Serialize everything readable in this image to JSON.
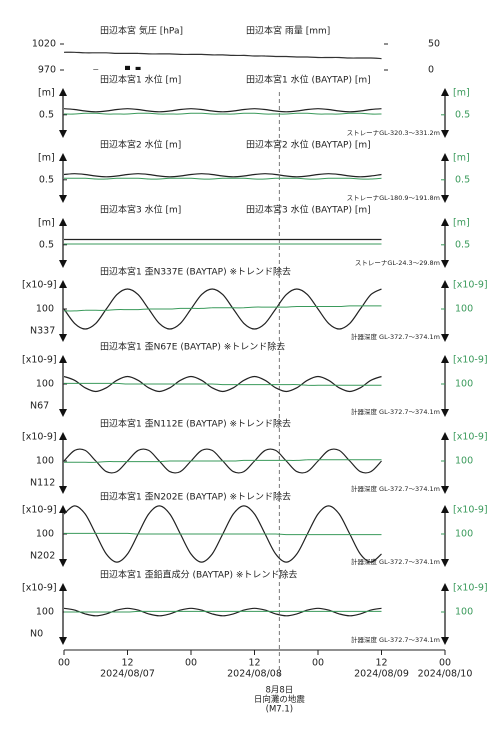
{
  "chart_data": {
    "type": "line",
    "x": [
      0,
      2,
      4,
      6,
      8,
      10,
      12,
      14,
      16,
      18,
      20,
      22,
      24,
      26,
      28,
      30,
      32,
      34,
      36,
      38,
      40,
      42,
      44,
      46,
      48,
      50,
      52,
      54,
      56,
      58,
      60
    ],
    "xlim": [
      0,
      72
    ],
    "xticks": [
      {
        "value": 0,
        "label": "00"
      },
      {
        "value": 12,
        "label": "12"
      },
      {
        "value": 24,
        "label": "00"
      },
      {
        "value": 36,
        "label": "12"
      },
      {
        "value": 48,
        "label": "00"
      },
      {
        "value": 60,
        "label": "12"
      },
      {
        "value": 72,
        "label": "00"
      }
    ],
    "date_labels": [
      {
        "value": 12,
        "label": "2024/08/07"
      },
      {
        "value": 36,
        "label": "2024/08/08"
      },
      {
        "value": 60,
        "label": "2024/08/09"
      },
      {
        "value": 72,
        "label": "2024/08/10"
      }
    ],
    "event": {
      "x": 40.7,
      "labels": [
        "8月8日",
        "日向灘の地震",
        "(M7.1)"
      ]
    },
    "panels": [
      {
        "titles": [
          "田辺本宮 気圧 [hPa]",
          "田辺本宮 雨量 [mm]"
        ],
        "ylim": [
          970,
          1020
        ],
        "yticks": [
          970,
          1020
        ],
        "y2lim": [
          0,
          50
        ],
        "y2ticks": [
          0,
          50
        ],
        "series": [
          {
            "color": "#333333",
            "values": [
              1004,
              1004,
              1003,
              1003,
              1003,
              1002,
              1002,
              1002,
              1001,
              1001,
              1001,
              1000,
              1000,
              1000,
              999,
              999,
              998,
              998,
              997,
              997,
              996,
              996,
              995,
              995,
              994,
              994,
              994,
              993,
              993,
              993,
              992
            ]
          },
          {
            "type": "bar",
            "axis": "y2",
            "color": "#111111",
            "values": [
              0,
              0,
              0,
              1,
              0,
              0,
              8,
              6,
              0,
              0,
              0,
              0,
              0,
              0,
              0,
              0,
              0,
              0,
              0,
              0,
              0,
              0,
              0,
              0,
              0,
              0,
              0,
              0,
              0,
              0,
              0
            ]
          }
        ]
      },
      {
        "titles": [
          "田辺本宮1 水位 [m]",
          "田辺本宮1 水位 (BAYTAP) [m]"
        ],
        "unit": "[m]",
        "y2unit": "[m]",
        "ylim": [
          0.3,
          0.8
        ],
        "yticks": [
          0.5
        ],
        "y2lim": [
          0.3,
          0.8
        ],
        "y2ticks": [
          0.5
        ],
        "note": "ストレーナGL-320.3～331.2m",
        "series": [
          {
            "color": "#222222",
            "values": [
              0.58,
              0.57,
              0.55,
              0.54,
              0.55,
              0.57,
              0.58,
              0.57,
              0.55,
              0.54,
              0.55,
              0.57,
              0.58,
              0.57,
              0.55,
              0.54,
              0.55,
              0.57,
              0.58,
              0.57,
              0.55,
              0.54,
              0.55,
              0.57,
              0.58,
              0.57,
              0.55,
              0.54,
              0.55,
              0.57,
              0.58
            ]
          },
          {
            "axis": "y2",
            "color": "#3a9a5b",
            "values": [
              0.51,
              0.51,
              0.52,
              0.52,
              0.51,
              0.51,
              0.51,
              0.52,
              0.52,
              0.51,
              0.51,
              0.51,
              0.52,
              0.52,
              0.51,
              0.51,
              0.51,
              0.52,
              0.52,
              0.51,
              0.51,
              0.51,
              0.52,
              0.52,
              0.51,
              0.51,
              0.51,
              0.52,
              0.52,
              0.51,
              0.51
            ]
          }
        ]
      },
      {
        "titles": [
          "田辺本宮2 水位 [m]",
          "田辺本宮2 水位 (BAYTAP) [m]"
        ],
        "unit": "[m]",
        "y2unit": "[m]",
        "ylim": [
          0.3,
          0.8
        ],
        "yticks": [
          0.5
        ],
        "y2lim": [
          0.3,
          0.8
        ],
        "y2ticks": [
          0.5
        ],
        "note": "ストレーナGL-180.9～191.8m",
        "series": [
          {
            "color": "#222222",
            "values": [
              0.57,
              0.58,
              0.57,
              0.55,
              0.54,
              0.55,
              0.57,
              0.58,
              0.57,
              0.55,
              0.54,
              0.55,
              0.57,
              0.58,
              0.57,
              0.55,
              0.54,
              0.55,
              0.57,
              0.58,
              0.57,
              0.55,
              0.54,
              0.55,
              0.57,
              0.58,
              0.57,
              0.55,
              0.54,
              0.55,
              0.57
            ]
          },
          {
            "axis": "y2",
            "color": "#3a9a5b",
            "values": [
              0.52,
              0.52,
              0.52,
              0.51,
              0.51,
              0.52,
              0.52,
              0.52,
              0.51,
              0.51,
              0.52,
              0.52,
              0.52,
              0.51,
              0.51,
              0.52,
              0.52,
              0.52,
              0.51,
              0.51,
              0.52,
              0.52,
              0.52,
              0.51,
              0.51,
              0.52,
              0.52,
              0.52,
              0.51,
              0.51,
              0.52
            ]
          }
        ]
      },
      {
        "titles": [
          "田辺本宮3 水位 [m]",
          "田辺本宮3 水位 (BAYTAP) [m]"
        ],
        "unit": "[m]",
        "y2unit": "[m]",
        "ylim": [
          0.3,
          0.8
        ],
        "yticks": [
          0.5
        ],
        "y2lim": [
          0.3,
          0.8
        ],
        "y2ticks": [
          0.5
        ],
        "note": "ストレーナGL-24.3～29.8m",
        "series": [
          {
            "color": "#222222",
            "values": [
              0.57,
              0.57,
              0.57,
              0.57,
              0.57,
              0.57,
              0.57,
              0.57,
              0.57,
              0.57,
              0.57,
              0.57,
              0.57,
              0.57,
              0.57,
              0.57,
              0.57,
              0.57,
              0.57,
              0.57,
              0.57,
              0.57,
              0.57,
              0.57,
              0.57,
              0.57,
              0.57,
              0.57,
              0.57,
              0.57,
              0.57
            ]
          },
          {
            "axis": "y2",
            "color": "#3a9a5b",
            "values": [
              0.51,
              0.51,
              0.51,
              0.51,
              0.51,
              0.51,
              0.51,
              0.51,
              0.51,
              0.51,
              0.51,
              0.51,
              0.51,
              0.51,
              0.51,
              0.51,
              0.51,
              0.51,
              0.51,
              0.51,
              0.51,
              0.51,
              0.51,
              0.51,
              0.51,
              0.51,
              0.51,
              0.51,
              0.51,
              0.51,
              0.51
            ]
          }
        ]
      },
      {
        "titles": [
          "田辺本宮1 歪N337E (BAYTAP) ※トレンド除去"
        ],
        "unit": "[x10-9]",
        "y2unit": "[x10-9]",
        "label": "N337",
        "ylim": [
          60,
          140
        ],
        "yticks": [
          100
        ],
        "y2lim": [
          60,
          140
        ],
        "y2ticks": [
          100
        ],
        "note": "計器深度 GL-372.7～374.1m",
        "series": [
          {
            "color": "#222222",
            "values": [
              100,
              77,
              68,
              77,
              100,
              123,
              132,
              123,
              100,
              77,
              68,
              77,
              100,
              123,
              132,
              123,
              100,
              77,
              68,
              77,
              100,
              123,
              132,
              123,
              100,
              77,
              68,
              77,
              100,
              123,
              132
            ]
          },
          {
            "axis": "y2",
            "color": "#3a9a5b",
            "values": [
              97,
              97,
              98,
              98,
              98,
              99,
              99,
              99,
              100,
              100,
              100,
              101,
              101,
              101,
              102,
              102,
              102,
              102,
              103,
              103,
              103,
              103,
              104,
              104,
              104,
              104,
              104,
              105,
              105,
              105,
              105
            ]
          }
        ]
      },
      {
        "titles": [
          "田辺本宮1 歪N67E (BAYTAP) ※トレンド除去"
        ],
        "unit": "[x10-9]",
        "y2unit": "[x10-9]",
        "label": "N67",
        "ylim": [
          60,
          140
        ],
        "yticks": [
          100
        ],
        "y2lim": [
          60,
          140
        ],
        "y2ticks": [
          100
        ],
        "note": "計器深度 GL-372.7～374.1m",
        "series": [
          {
            "color": "#222222",
            "values": [
              112,
              106,
              94,
              88,
              94,
              106,
              112,
              106,
              94,
              88,
              94,
              106,
              112,
              106,
              94,
              88,
              94,
              106,
              112,
              106,
              94,
              88,
              94,
              106,
              112,
              106,
              94,
              88,
              94,
              106,
              112
            ]
          },
          {
            "axis": "y2",
            "color": "#3a9a5b",
            "values": [
              101,
              101,
              101,
              101,
              101,
              101,
              100,
              100,
              100,
              100,
              100,
              100,
              100,
              100,
              100,
              99,
              99,
              99,
              99,
              99,
              99,
              99,
              99,
              98,
              98,
              98,
              98,
              98,
              98,
              98,
              98
            ]
          }
        ]
      },
      {
        "titles": [
          "田辺本宮1 歪N112E (BAYTAP) ※トレンド除去"
        ],
        "unit": "[x10-9]",
        "y2unit": "[x10-9]",
        "label": "N112",
        "ylim": [
          60,
          140
        ],
        "yticks": [
          100
        ],
        "y2lim": [
          60,
          140
        ],
        "y2ticks": [
          100
        ],
        "note": "計器深度 GL-372.7～374.1m",
        "series": [
          {
            "color": "#222222",
            "values": [
              100,
              117,
              117,
              100,
              83,
              83,
              100,
              117,
              117,
              100,
              83,
              83,
              100,
              117,
              117,
              100,
              83,
              83,
              100,
              117,
              117,
              100,
              83,
              83,
              100,
              117,
              117,
              100,
              83,
              83,
              100
            ]
          },
          {
            "axis": "y2",
            "color": "#3a9a5b",
            "values": [
              98,
              98,
              98,
              98,
              99,
              99,
              99,
              99,
              99,
              99,
              100,
              100,
              100,
              100,
              100,
              100,
              100,
              101,
              101,
              101,
              101,
              101,
              101,
              102,
              102,
              102,
              102,
              102,
              102,
              102,
              102
            ]
          }
        ]
      },
      {
        "titles": [
          "田辺本宮1 歪N202E (BAYTAP) ※トレンド除去"
        ],
        "unit": "[x10-9]",
        "y2unit": "[x10-9]",
        "label": "N202",
        "ylim": [
          60,
          140
        ],
        "yticks": [
          100
        ],
        "y2lim": [
          60,
          140
        ],
        "y2ticks": [
          100
        ],
        "note": "計器深度 GL-372.7～374.1m",
        "series": [
          {
            "color": "#222222",
            "values": [
              132,
              145,
              132,
              100,
              68,
              55,
              68,
              100,
              132,
              145,
              132,
              100,
              68,
              55,
              68,
              100,
              132,
              145,
              132,
              100,
              68,
              55,
              68,
              100,
              132,
              145,
              132,
              100,
              68,
              55,
              68
            ]
          },
          {
            "axis": "y2",
            "color": "#3a9a5b",
            "values": [
              101,
              101,
              101,
              101,
              101,
              101,
              101,
              100,
              100,
              100,
              100,
              100,
              100,
              100,
              100,
              100,
              100,
              100,
              100,
              100,
              100,
              99,
              99,
              99,
              99,
              99,
              99,
              99,
              99,
              99,
              99
            ]
          }
        ]
      },
      {
        "titles": [
          "田辺本宮1 歪鉛直成分 (BAYTAP) ※トレンド除去"
        ],
        "unit": "[x10-9]",
        "y2unit": "[x10-9]",
        "label": "N0",
        "ylim": [
          60,
          140
        ],
        "yticks": [
          100
        ],
        "y2lim": [
          60,
          140
        ],
        "y2ticks": [
          100
        ],
        "note": "計器深度 GL-372.7～374.1m",
        "series": [
          {
            "color": "#222222",
            "values": [
              106,
              103,
              97,
              94,
              97,
              103,
              106,
              103,
              97,
              94,
              97,
              103,
              106,
              103,
              97,
              94,
              97,
              103,
              106,
              103,
              97,
              94,
              97,
              103,
              106,
              103,
              97,
              94,
              97,
              103,
              106
            ]
          },
          {
            "axis": "y2",
            "color": "#3a9a5b",
            "values": [
              100,
              100,
              100,
              100,
              100,
              100,
              100,
              101,
              101,
              101,
              101,
              101,
              101,
              101,
              101,
              101,
              101,
              101,
              101,
              101,
              101,
              101,
              101,
              101,
              101,
              101,
              101,
              101,
              101,
              101,
              101
            ]
          }
        ]
      }
    ]
  }
}
